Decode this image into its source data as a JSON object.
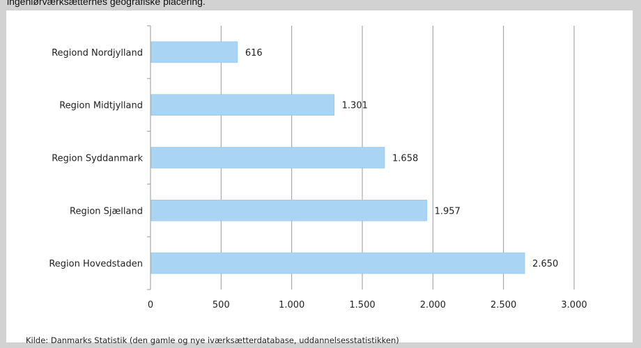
{
  "caption": "ingeniørværksætternes geografiske placering.",
  "source": "Kilde: Danmarks Statistik (den gamle og nye iværksætterdatabase, uddannelsesstatistikken)",
  "colors": {
    "bar": "#a9d4f3",
    "bar_edge": "#8fc2ea",
    "grid": "#9a9a9a",
    "background": "#d2d2d2",
    "panel": "#ffffff"
  },
  "chart_data": {
    "type": "bar",
    "orientation": "horizontal",
    "categories": [
      "Regiond Nordjylland",
      "Region Midtjylland",
      "Region Syddanmark",
      "Region Sjælland",
      "Region Hovedstaden"
    ],
    "values": [
      616,
      1301,
      1658,
      1957,
      2650
    ],
    "value_labels": [
      "616",
      "1.301",
      "1.658",
      "1.957",
      "2.650"
    ],
    "title": "",
    "xlabel": "",
    "ylabel": "",
    "xlim": [
      0,
      3000
    ],
    "xticks": [
      0,
      500,
      1000,
      1500,
      2000,
      2500,
      3000
    ],
    "xtick_labels": [
      "0",
      "500",
      "1.000",
      "1.500",
      "2.000",
      "2.500",
      "3.000"
    ],
    "grid": "vertical",
    "legend": "none"
  }
}
